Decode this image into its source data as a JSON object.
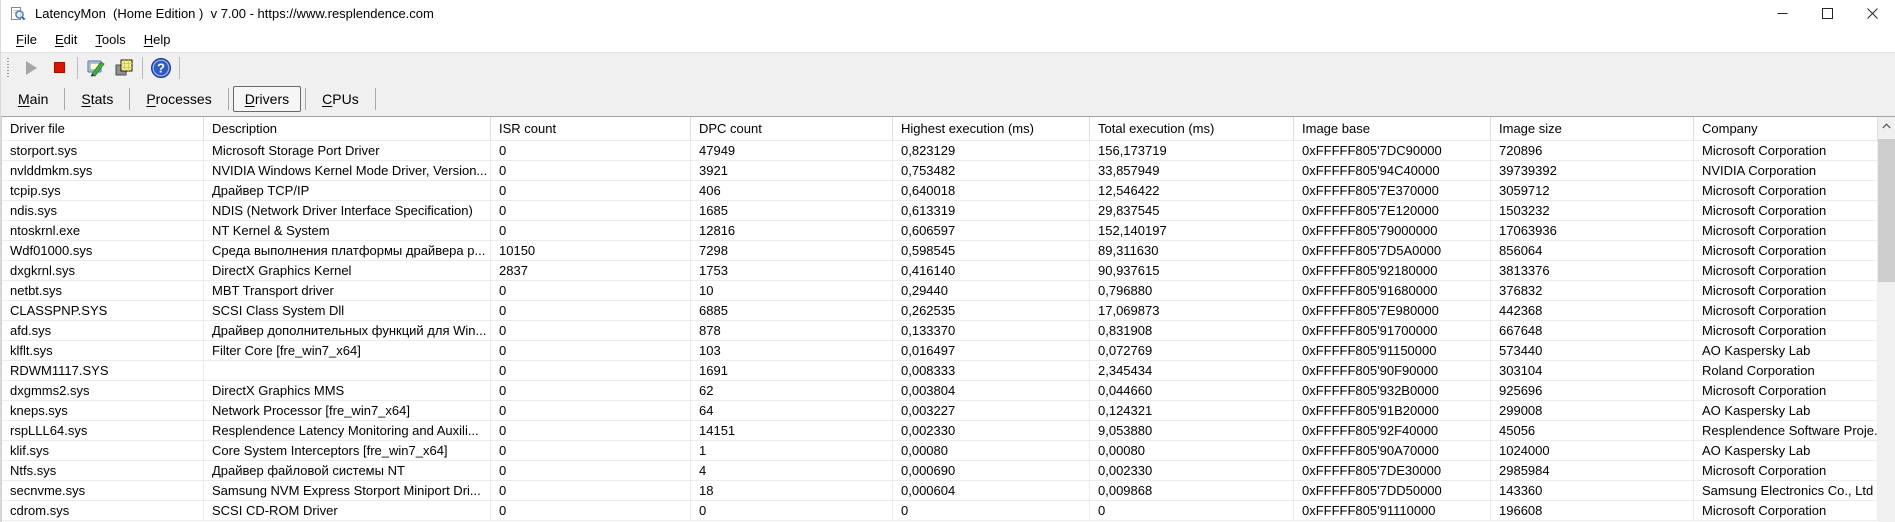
{
  "window": {
    "title": "LatencyMon  (Home Edition )  v 7.00 - https://www.resplendence.com",
    "app_icon": "latencymon-magnifier-icon",
    "control_icons": [
      "minimize-icon",
      "maximize-icon",
      "close-icon"
    ]
  },
  "menu": {
    "items": [
      {
        "label": "File",
        "underline": 0
      },
      {
        "label": "Edit",
        "underline": 0
      },
      {
        "label": "Tools",
        "underline": 0
      },
      {
        "label": "Help",
        "underline": 0
      }
    ]
  },
  "toolbar": {
    "icons": [
      "play-icon",
      "stop-icon",
      "analyze-icon",
      "copy-icon",
      "help-icon"
    ],
    "play_disabled": true
  },
  "tabs": {
    "items": [
      {
        "label": "Main",
        "underline": 0,
        "active": false
      },
      {
        "label": "Stats",
        "underline": 0,
        "active": false
      },
      {
        "label": "Processes",
        "underline": 0,
        "active": false
      },
      {
        "label": "Drivers",
        "underline": 0,
        "active": true
      },
      {
        "label": "CPUs",
        "underline": 0,
        "active": false
      }
    ]
  },
  "table": {
    "columns": [
      "Driver file",
      "Description",
      "ISR count",
      "DPC count",
      "Highest execution (ms)",
      "Total execution (ms)",
      "Image base",
      "Image size",
      "Company"
    ],
    "column_keys": [
      "driver-file",
      "description",
      "isr-count",
      "dpc-count",
      "highest-execution",
      "total-execution",
      "image-base",
      "image-size",
      "company"
    ],
    "rows": [
      [
        "storport.sys",
        "Microsoft Storage Port Driver",
        "0",
        "47949",
        "0,823129",
        "156,173719",
        "0xFFFFF805'7DC90000",
        "720896",
        "Microsoft Corporation"
      ],
      [
        "nvlddmkm.sys",
        "NVIDIA Windows Kernel Mode Driver, Version...",
        "0",
        "3921",
        "0,753482",
        "33,857949",
        "0xFFFFF805'94C40000",
        "39739392",
        "NVIDIA Corporation"
      ],
      [
        "tcpip.sys",
        "Драйвер TCP/IP",
        "0",
        "406",
        "0,640018",
        "12,546422",
        "0xFFFFF805'7E370000",
        "3059712",
        "Microsoft Corporation"
      ],
      [
        "ndis.sys",
        "NDIS (Network Driver Interface Specification)",
        "0",
        "1685",
        "0,613319",
        "29,837545",
        "0xFFFFF805'7E120000",
        "1503232",
        "Microsoft Corporation"
      ],
      [
        "ntoskrnl.exe",
        "NT Kernel & System",
        "0",
        "12816",
        "0,606597",
        "152,140197",
        "0xFFFFF805'79000000",
        "17063936",
        "Microsoft Corporation"
      ],
      [
        "Wdf01000.sys",
        "Среда выполнения платформы драйвера р...",
        "10150",
        "7298",
        "0,598545",
        "89,311630",
        "0xFFFFF805'7D5A0000",
        "856064",
        "Microsoft Corporation"
      ],
      [
        "dxgkrnl.sys",
        "DirectX Graphics Kernel",
        "2837",
        "1753",
        "0,416140",
        "90,937615",
        "0xFFFFF805'92180000",
        "3813376",
        "Microsoft Corporation"
      ],
      [
        "netbt.sys",
        "MBT Transport driver",
        "0",
        "10",
        "0,29440",
        "0,796880",
        "0xFFFFF805'91680000",
        "376832",
        "Microsoft Corporation"
      ],
      [
        "CLASSPNP.SYS",
        "SCSI Class System Dll",
        "0",
        "6885",
        "0,262535",
        "17,069873",
        "0xFFFFF805'7E980000",
        "442368",
        "Microsoft Corporation"
      ],
      [
        "afd.sys",
        "Драйвер дополнительных функций для Win...",
        "0",
        "878",
        "0,133370",
        "0,831908",
        "0xFFFFF805'91700000",
        "667648",
        "Microsoft Corporation"
      ],
      [
        "klflt.sys",
        "Filter Core [fre_win7_x64]",
        "0",
        "103",
        "0,016497",
        "0,072769",
        "0xFFFFF805'91150000",
        "573440",
        "AO Kaspersky Lab"
      ],
      [
        "RDWM1117.SYS",
        "",
        "0",
        "1691",
        "0,008333",
        "2,345434",
        "0xFFFFF805'90F90000",
        "303104",
        "Roland Corporation"
      ],
      [
        "dxgmms2.sys",
        "DirectX Graphics MMS",
        "0",
        "62",
        "0,003804",
        "0,044660",
        "0xFFFFF805'932B0000",
        "925696",
        "Microsoft Corporation"
      ],
      [
        "kneps.sys",
        "Network Processor [fre_win7_x64]",
        "0",
        "64",
        "0,003227",
        "0,124321",
        "0xFFFFF805'91B20000",
        "299008",
        "AO Kaspersky Lab"
      ],
      [
        "rspLLL64.sys",
        "Resplendence Latency Monitoring and Auxili...",
        "0",
        "14151",
        "0,002330",
        "9,053880",
        "0xFFFFF805'92F40000",
        "45056",
        "Resplendence Software Proje..."
      ],
      [
        "klif.sys",
        "Core System Interceptors [fre_win7_x64]",
        "0",
        "1",
        "0,00080",
        "0,00080",
        "0xFFFFF805'90A70000",
        "1024000",
        "AO Kaspersky Lab"
      ],
      [
        "Ntfs.sys",
        "Драйвер файловой системы NT",
        "0",
        "4",
        "0,000690",
        "0,002330",
        "0xFFFFF805'7DE30000",
        "2985984",
        "Microsoft Corporation"
      ],
      [
        "secnvme.sys",
        "Samsung NVM Express Storport Miniport Dri...",
        "0",
        "18",
        "0,000604",
        "0,009868",
        "0xFFFFF805'7DD50000",
        "143360",
        "Samsung Electronics Co., Ltd"
      ],
      [
        "cdrom.sys",
        "SCSI CD-ROM Driver",
        "0",
        "0",
        "0",
        "0",
        "0xFFFFF805'91110000",
        "196608",
        "Microsoft Corporation"
      ]
    ]
  },
  "colors": {
    "stop_red": "#e31000",
    "help_blue": "#2f5bc4",
    "copy_yellow": "#f3ef8b",
    "pen_green": "#3fae3f",
    "toolbar_bg": "#f0f0f0",
    "grid_line": "#ececec",
    "scrollbar_thumb": "#cdcdcd"
  }
}
